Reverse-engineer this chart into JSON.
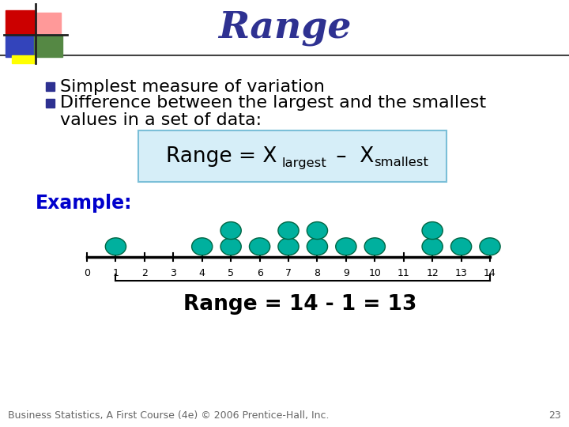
{
  "title": "Range",
  "title_color": "#2E3191",
  "title_fontsize": 34,
  "bullet1": "Simplest measure of variation",
  "bullet2a": "Difference between the largest and the smallest",
  "bullet2b": "values in a set of data:",
  "bullet_color": "#000000",
  "bullet_fontsize": 16,
  "bullet_square_color": "#2E3191",
  "formula_box_facecolor": "#D6EEF8",
  "formula_box_edgecolor": "#7BBFD8",
  "formula_color": "#000000",
  "formula_fontsize": 19,
  "example_label": "Example:",
  "example_color": "#0000CC",
  "example_fontsize": 17,
  "dot_color": "#00B09E",
  "dot_edge_color": "#006644",
  "dot_counts": {
    "1": 1,
    "2": 0,
    "3": 0,
    "4": 1,
    "5": 2,
    "6": 1,
    "7": 2,
    "8": 2,
    "9": 1,
    "10": 1,
    "11": 0,
    "12": 2,
    "13": 1,
    "14": 1
  },
  "axis_min": 0,
  "axis_max": 14,
  "range_text": "Range = 14 - 1 = 13",
  "range_fontsize": 19,
  "range_color": "#000000",
  "footer_text": "Business Statistics, A First Course (4e) © 2006 Prentice-Hall, Inc.",
  "footer_fontsize": 9,
  "page_number": "23",
  "bg_color": "#FFFFFF"
}
